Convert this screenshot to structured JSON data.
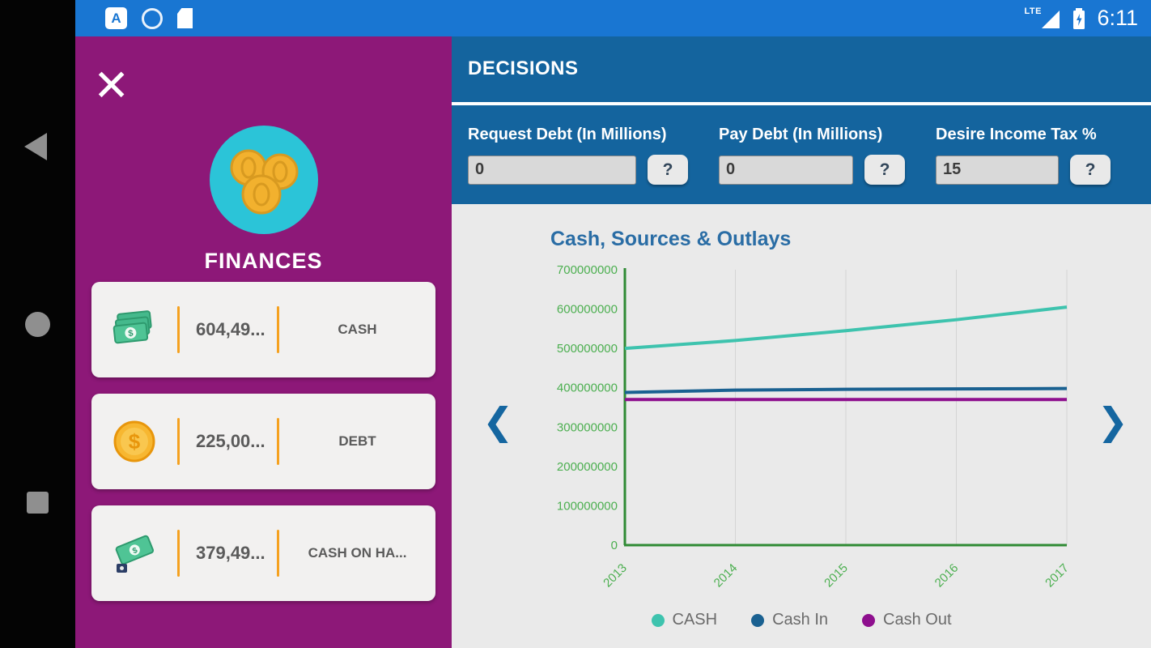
{
  "status_bar": {
    "time": "6:11",
    "network": "LTE",
    "notification_icons": [
      "letter-a-app-icon",
      "clock-icon",
      "sim-card-icon"
    ]
  },
  "icons": {
    "close": "✕",
    "prev": "❮",
    "next": "❯",
    "help": "?"
  },
  "sidebar": {
    "title": "FINANCES",
    "avatar_icon": "coins-icon",
    "cards": [
      {
        "icon": "cash-bills-icon",
        "value": "604,49...",
        "label": "CASH"
      },
      {
        "icon": "dollar-coin-icon",
        "value": "225,00...",
        "label": "DEBT"
      },
      {
        "icon": "cash-on-hand-icon",
        "value": "379,49...",
        "label": "CASH ON HA..."
      }
    ]
  },
  "decisions": {
    "title": "DECISIONS",
    "fields": [
      {
        "label": "Request Debt (In Millions)",
        "value": "0"
      },
      {
        "label": "Pay Debt (In Millions)",
        "value": "0"
      },
      {
        "label": "Desire Income Tax %",
        "value": "15"
      }
    ]
  },
  "chart_data": {
    "type": "line",
    "title": "Cash, Sources & Outlays",
    "x": [
      "2013",
      "2014",
      "2015",
      "2016",
      "2017"
    ],
    "series": [
      {
        "name": "CASH",
        "color": "#3EC3AE",
        "values": [
          500000000,
          520000000,
          545000000,
          573000000,
          605000000
        ]
      },
      {
        "name": "Cash In",
        "color": "#1A6191",
        "values": [
          388000000,
          394000000,
          396000000,
          397000000,
          398000000
        ]
      },
      {
        "name": "Cash Out",
        "color": "#8E0F8E",
        "values": [
          370000000,
          370000000,
          370000000,
          370000000,
          370000000
        ]
      }
    ],
    "ylim": [
      0,
      700000000
    ],
    "yticks": [
      0,
      100000000,
      200000000,
      300000000,
      400000000,
      500000000,
      600000000,
      700000000
    ],
    "grid": true,
    "legend_position": "bottom",
    "axis_color": "#2F8A34",
    "tick_color": "#4CAF50",
    "grid_color": "#D4D4D4",
    "plot_bg": "#EAEAEA"
  }
}
